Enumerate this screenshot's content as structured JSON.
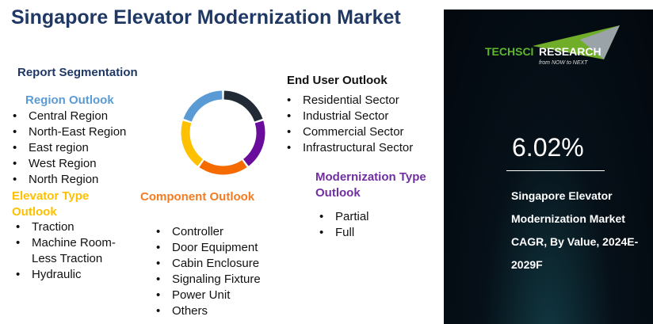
{
  "title": "Singapore Elevator Modernization Market",
  "report_segmentation": "Report Segmentation",
  "region": {
    "heading": "Region Outlook",
    "color": "#5b9bd5",
    "items": [
      "Central Region",
      "North-East Region",
      "East region",
      "West Region",
      "North Region"
    ]
  },
  "elevator_type": {
    "heading": "Elevator Type Outlook",
    "color": "#ffc000",
    "items": [
      "Traction",
      "Machine Room-Less Traction",
      "Hydraulic"
    ]
  },
  "component": {
    "heading": "Component Outlook",
    "color": "#f47b20",
    "items": [
      "Controller",
      "Door Equipment",
      "Cabin Enclosure",
      "Signaling Fixture",
      "Power Unit",
      "Others"
    ]
  },
  "end_user": {
    "heading": "End User Outlook",
    "color": "#1e2530",
    "items": [
      "Residential Sector",
      "Industrial Sector",
      "Commercial Sector",
      "Infrastructural Sector"
    ]
  },
  "modernization": {
    "heading": "Modernization Type Outlook",
    "color": "#7030a0",
    "items": [
      "Partial",
      "Full"
    ]
  },
  "donut_colors": [
    "#222a35",
    "#6a0d9c",
    "#f56b00",
    "#ffc000",
    "#5b9bd5"
  ],
  "panel": {
    "logo_text": "TechSci Research",
    "logo_tagline": "from NOW to NEXT",
    "cagr": "6.02%",
    "description": "Singapore Elevator Modernization Market CAGR, By Value, 2024E-2029F"
  }
}
